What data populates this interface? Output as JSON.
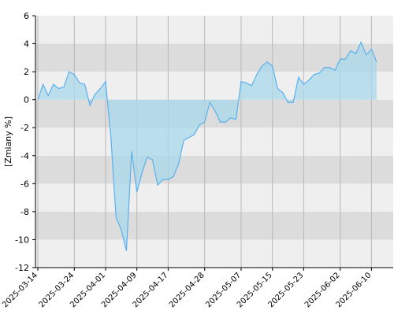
{
  "chart_data": {
    "type": "area",
    "title": "",
    "xlabel": "",
    "ylabel": "[Zmiany %]",
    "ylim": [
      -12,
      6
    ],
    "yticks": [
      -12,
      -10,
      -8,
      -6,
      -4,
      -2,
      0,
      2,
      4,
      6
    ],
    "grid": true,
    "legend": "none",
    "xticks": [
      "2025-03-14",
      "2025-03-24",
      "2025-04-01",
      "2025-04-09",
      "2025-04-17",
      "2025-04-28",
      "2025-05-07",
      "2025-05-15",
      "2025-05-23",
      "2025-06-02",
      "2025-06-10"
    ],
    "xtick_index": [
      0,
      7,
      13,
      19,
      25,
      32,
      39,
      45,
      51,
      58,
      64
    ],
    "colors": {
      "line": "#5ab0ef",
      "fill": "#a8d8ea",
      "band_light": "#efefef",
      "band_dark": "#dcdcdc",
      "axis": "#000000",
      "vgrid": "#b8b8b8"
    },
    "series": [
      {
        "values": [
          0.0,
          1.1,
          0.3,
          1.1,
          0.8,
          0.9,
          2.0,
          1.8,
          1.2,
          1.1,
          -0.4,
          0.4,
          0.8,
          1.3,
          -2.6,
          -8.4,
          -9.3,
          -10.8,
          -3.7,
          -6.6,
          -5.2,
          -4.1,
          -4.3,
          -6.1,
          -5.7,
          -5.7,
          -5.5,
          -4.6,
          -2.9,
          -2.7,
          -2.5,
          -1.8,
          -1.6,
          -0.2,
          -0.8,
          -1.6,
          -1.6,
          -1.3,
          -1.4,
          1.3,
          1.2,
          1.0,
          1.8,
          2.4,
          2.7,
          2.4,
          0.8,
          0.5,
          -0.2,
          -0.2,
          1.6,
          1.1,
          1.4,
          1.8,
          1.9,
          2.3,
          2.3,
          2.1,
          2.9,
          2.9,
          3.5,
          3.3,
          4.1,
          3.2,
          3.6,
          2.7
        ]
      }
    ]
  }
}
